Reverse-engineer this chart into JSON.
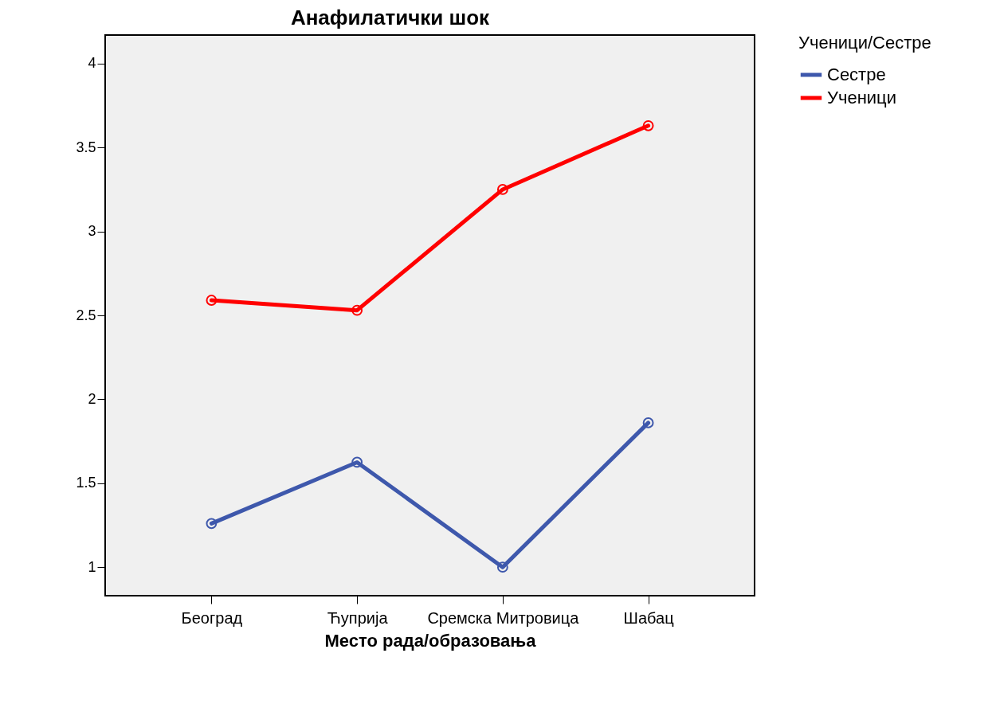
{
  "chart_data": {
    "type": "line",
    "title": "Анафилатички шок",
    "xlabel": "Место рада/образовања",
    "legend_title": "Ученици/Сестре",
    "categories": [
      "Београд",
      "Ћуприја",
      "Сремска Митровица",
      "Шабац"
    ],
    "series": [
      {
        "name": "Сестре",
        "color": "#3e58ac",
        "values": [
          1.26,
          1.625,
          1.0,
          1.86
        ]
      },
      {
        "name": "Ученици",
        "color": "#ff0000",
        "values": [
          2.59,
          2.53,
          3.25,
          3.63
        ]
      }
    ],
    "ylim": [
      0.83,
      4.17
    ],
    "yticks": [
      1,
      1.5,
      2,
      2.5,
      3,
      3.5,
      4
    ],
    "grid": false,
    "legend": "right",
    "marker": "circle",
    "line_style": "solid"
  }
}
